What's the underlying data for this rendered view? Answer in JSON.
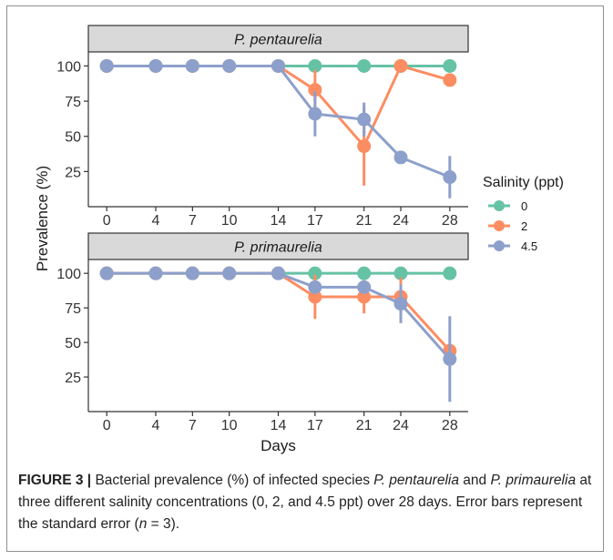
{
  "chart_data": {
    "type": "line",
    "ylabel": "Prevalence (%)",
    "xlabel": "Days",
    "x": [
      0,
      4,
      7,
      10,
      14,
      17,
      21,
      24,
      28
    ],
    "x_tick_labels": [
      "0",
      "4",
      "7",
      "10",
      "14",
      "17",
      "21",
      "24",
      "28"
    ],
    "y_ticks": [
      25,
      50,
      75,
      100
    ],
    "y_tick_labels": [
      "25",
      "50",
      "75",
      "100"
    ],
    "ylim": [
      0,
      110
    ],
    "legend": {
      "title": "Salinity (ppt)",
      "position": "right",
      "entries": [
        {
          "label": "0",
          "color": "#66c2a5"
        },
        {
          "label": "2",
          "color": "#fc8d62"
        },
        {
          "label": "4.5",
          "color": "#8da0cb"
        }
      ]
    },
    "panels": [
      {
        "title": "P. pentaurelia",
        "series": [
          {
            "name": "0",
            "color": "#66c2a5",
            "values": [
              100,
              100,
              100,
              100,
              100,
              100,
              100,
              100,
              100
            ],
            "errors": [
              0,
              0,
              0,
              0,
              0,
              0,
              0,
              0,
              0
            ]
          },
          {
            "name": "2",
            "color": "#fc8d62",
            "values": [
              100,
              100,
              100,
              100,
              100,
              83,
              43,
              100,
              90
            ],
            "errors": [
              0,
              0,
              0,
              0,
              0,
              14,
              28,
              0,
              0
            ]
          },
          {
            "name": "4.5",
            "color": "#8da0cb",
            "values": [
              100,
              100,
              100,
              100,
              100,
              66,
              62,
              35,
              21
            ],
            "errors": [
              0,
              0,
              0,
              0,
              0,
              16,
              12,
              0,
              15
            ]
          }
        ]
      },
      {
        "title": "P. primaurelia",
        "series": [
          {
            "name": "0",
            "color": "#66c2a5",
            "values": [
              100,
              100,
              100,
              100,
              100,
              100,
              100,
              100,
              100
            ],
            "errors": [
              0,
              0,
              0,
              0,
              0,
              0,
              0,
              0,
              0
            ]
          },
          {
            "name": "2",
            "color": "#fc8d62",
            "values": [
              100,
              100,
              100,
              100,
              100,
              83,
              83,
              83,
              44
            ],
            "errors": [
              0,
              0,
              0,
              0,
              0,
              16,
              12,
              14,
              0
            ]
          },
          {
            "name": "4.5",
            "color": "#8da0cb",
            "values": [
              100,
              100,
              100,
              100,
              100,
              90,
              90,
              78,
              38
            ],
            "errors": [
              0,
              0,
              0,
              0,
              0,
              0,
              0,
              14,
              31
            ]
          }
        ]
      }
    ]
  },
  "caption": {
    "label": "FIGURE 3 |",
    "part1": " Bacterial prevalence (%) of infected species ",
    "species1": "P. pentaurelia",
    "part2": " and ",
    "species2": "P. primaurelia",
    "part3": " at three different salinity concentrations (0, 2, and 4.5 ppt) over 28 days. Error bars represent the standard error (",
    "n_symbol": "n",
    "part4": " = 3)."
  }
}
